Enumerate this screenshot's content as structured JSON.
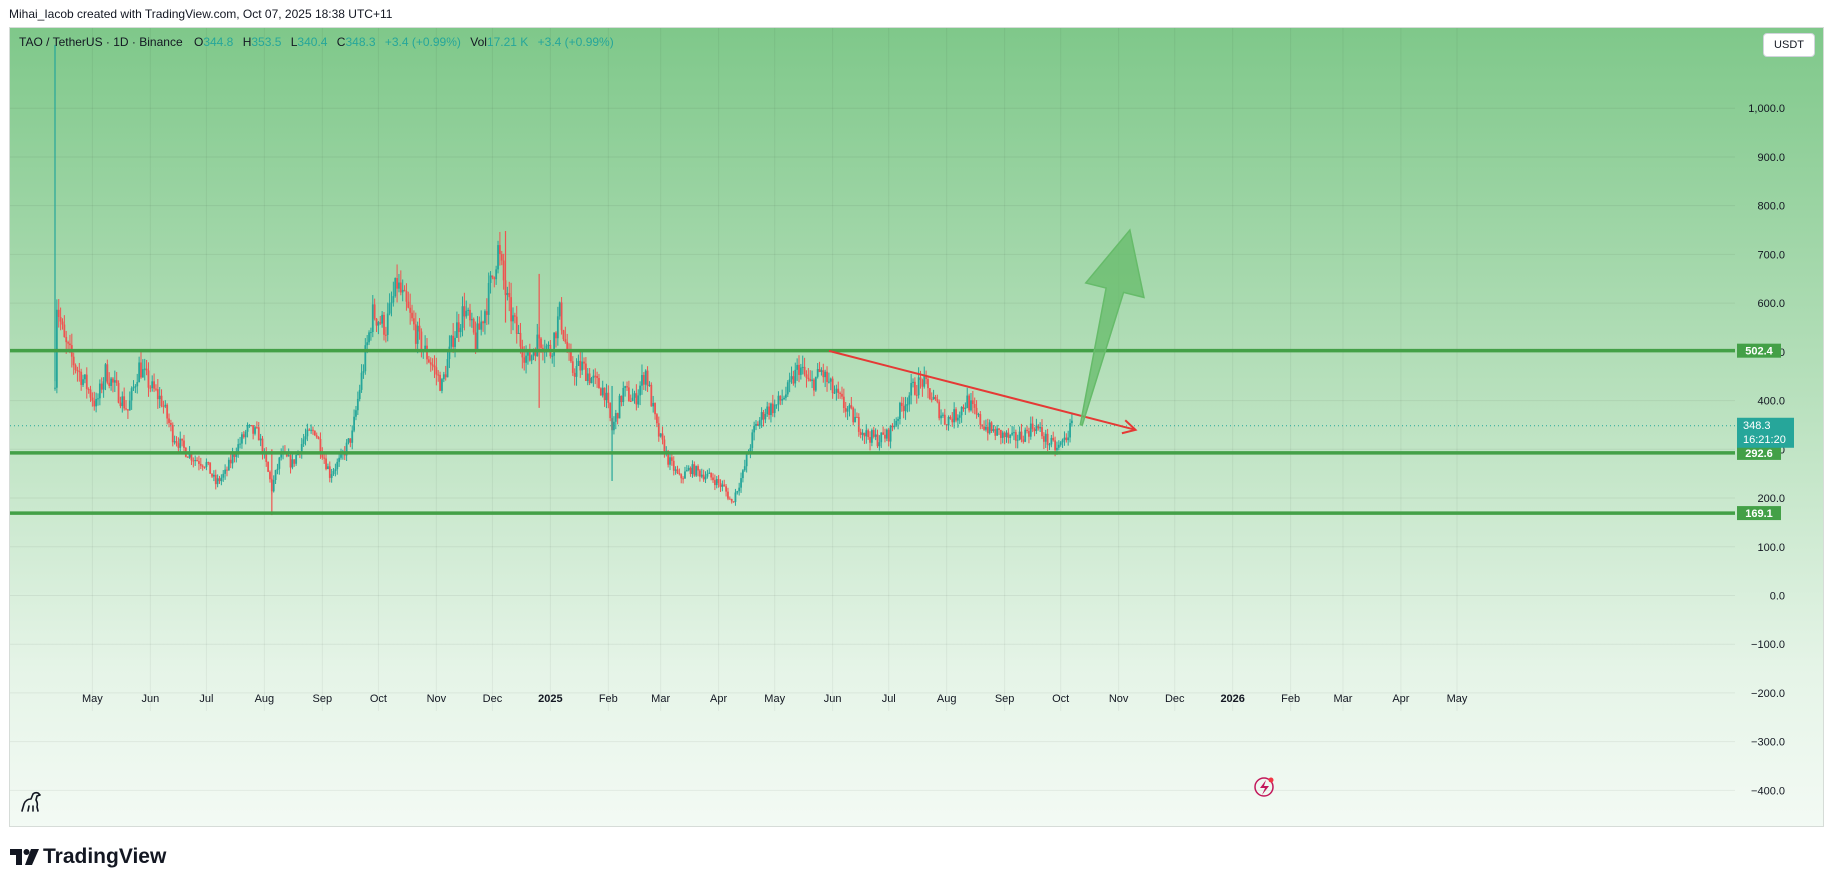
{
  "header": {
    "attribution": "Mihai_Iacob created with TradingView.com, Oct 07, 2025 18:38 UTC+11"
  },
  "legend": {
    "symbol": "TAO / TetherUS · 1D · Binance",
    "o_label": "O",
    "o_value": "344.8",
    "h_label": "H",
    "h_value": "353.5",
    "l_label": "L",
    "l_value": "340.4",
    "c_label": "C",
    "c_value": "348.3",
    "change": "+3.4 (+0.99%)",
    "vol_label": "Vol",
    "vol_value": "17.21 K",
    "vol_change": "+3.4 (+0.99%)"
  },
  "currency_button": "USDT",
  "footer": {
    "brand": "TradingView"
  },
  "icons": {
    "logo": "tradingview-logo-icon",
    "dino": "dino-icon",
    "events": "lightning-icon"
  },
  "colors": {
    "up": "#26a69a",
    "down": "#ef5350",
    "levels": "#43a047",
    "trendline": "#e53935",
    "projection": "#66bb6a",
    "last_price": "#26a69a"
  },
  "chart_data": {
    "type": "candlestick",
    "ylim": [
      -430,
      1140
    ],
    "y_ticks": [
      1000,
      900,
      800,
      700,
      600,
      500,
      400,
      300,
      200,
      100,
      0,
      -100,
      -200,
      -300,
      -400
    ],
    "y_tick_labels": [
      "1,000.0",
      "900.0",
      "800.0",
      "700.0",
      "600.0",
      "500.0",
      "400.0",
      "300.0",
      "200.0",
      "100.0",
      "0.0",
      "−100.0",
      "−200.0",
      "−300.0",
      "−400.0"
    ],
    "x_axis": {
      "start": "2024-04-11",
      "ticks": [
        {
          "date": "2024-05-01",
          "label": "May"
        },
        {
          "date": "2024-06-01",
          "label": "Jun"
        },
        {
          "date": "2024-07-01",
          "label": "Jul"
        },
        {
          "date": "2024-08-01",
          "label": "Aug"
        },
        {
          "date": "2024-09-01",
          "label": "Sep"
        },
        {
          "date": "2024-10-01",
          "label": "Oct"
        },
        {
          "date": "2024-11-01",
          "label": "Nov"
        },
        {
          "date": "2024-12-01",
          "label": "Dec"
        },
        {
          "date": "2025-01-01",
          "label": "2025",
          "bold": true
        },
        {
          "date": "2025-02-01",
          "label": "Feb"
        },
        {
          "date": "2025-03-01",
          "label": "Mar"
        },
        {
          "date": "2025-04-01",
          "label": "Apr"
        },
        {
          "date": "2025-05-01",
          "label": "May"
        },
        {
          "date": "2025-06-01",
          "label": "Jun"
        },
        {
          "date": "2025-07-01",
          "label": "Jul"
        },
        {
          "date": "2025-08-01",
          "label": "Aug"
        },
        {
          "date": "2025-09-01",
          "label": "Sep"
        },
        {
          "date": "2025-10-01",
          "label": "Oct"
        },
        {
          "date": "2025-11-01",
          "label": "Nov"
        },
        {
          "date": "2025-12-01",
          "label": "Dec"
        },
        {
          "date": "2026-01-01",
          "label": "2026",
          "bold": true
        },
        {
          "date": "2026-02-01",
          "label": "Feb"
        },
        {
          "date": "2026-03-01",
          "label": "Mar"
        },
        {
          "date": "2026-04-01",
          "label": "Apr"
        },
        {
          "date": "2026-05-01",
          "label": "May"
        }
      ]
    },
    "close_path": [
      {
        "date": "2024-04-11",
        "price": 450
      },
      {
        "date": "2024-04-12",
        "price": 600
      },
      {
        "date": "2024-04-16",
        "price": 520
      },
      {
        "date": "2024-04-22",
        "price": 470
      },
      {
        "date": "2024-04-28",
        "price": 430
      },
      {
        "date": "2024-05-03",
        "price": 390
      },
      {
        "date": "2024-05-08",
        "price": 460
      },
      {
        "date": "2024-05-14",
        "price": 420
      },
      {
        "date": "2024-05-20",
        "price": 380
      },
      {
        "date": "2024-05-26",
        "price": 470
      },
      {
        "date": "2024-06-01",
        "price": 430
      },
      {
        "date": "2024-06-07",
        "price": 400
      },
      {
        "date": "2024-06-13",
        "price": 330
      },
      {
        "date": "2024-06-19",
        "price": 300
      },
      {
        "date": "2024-06-25",
        "price": 280
      },
      {
        "date": "2024-07-01",
        "price": 270
      },
      {
        "date": "2024-07-06",
        "price": 230
      },
      {
        "date": "2024-07-11",
        "price": 250
      },
      {
        "date": "2024-07-17",
        "price": 300
      },
      {
        "date": "2024-07-23",
        "price": 340
      },
      {
        "date": "2024-07-29",
        "price": 330
      },
      {
        "date": "2024-08-05",
        "price": 220
      },
      {
        "date": "2024-08-10",
        "price": 290
      },
      {
        "date": "2024-08-16",
        "price": 270
      },
      {
        "date": "2024-08-22",
        "price": 320
      },
      {
        "date": "2024-08-28",
        "price": 340
      },
      {
        "date": "2024-09-05",
        "price": 250
      },
      {
        "date": "2024-09-11",
        "price": 280
      },
      {
        "date": "2024-09-17",
        "price": 330
      },
      {
        "date": "2024-09-22",
        "price": 450
      },
      {
        "date": "2024-09-28",
        "price": 580
      },
      {
        "date": "2024-10-05",
        "price": 550
      },
      {
        "date": "2024-10-11",
        "price": 640
      },
      {
        "date": "2024-10-17",
        "price": 580
      },
      {
        "date": "2024-10-23",
        "price": 520
      },
      {
        "date": "2024-10-29",
        "price": 480
      },
      {
        "date": "2024-11-04",
        "price": 430
      },
      {
        "date": "2024-11-10",
        "price": 530
      },
      {
        "date": "2024-11-16",
        "price": 590
      },
      {
        "date": "2024-11-22",
        "price": 520
      },
      {
        "date": "2024-11-28",
        "price": 600
      },
      {
        "date": "2024-12-04",
        "price": 710
      },
      {
        "date": "2024-12-09",
        "price": 600
      },
      {
        "date": "2024-12-14",
        "price": 540
      },
      {
        "date": "2024-12-20",
        "price": 480
      },
      {
        "date": "2024-12-26",
        "price": 530
      },
      {
        "date": "2025-01-01",
        "price": 500
      },
      {
        "date": "2025-01-06",
        "price": 580
      },
      {
        "date": "2025-01-12",
        "price": 460
      },
      {
        "date": "2025-01-18",
        "price": 470
      },
      {
        "date": "2025-01-24",
        "price": 440
      },
      {
        "date": "2025-01-30",
        "price": 420
      },
      {
        "date": "2025-02-03",
        "price": 340
      },
      {
        "date": "2025-02-09",
        "price": 420
      },
      {
        "date": "2025-02-15",
        "price": 400
      },
      {
        "date": "2025-02-21",
        "price": 460
      },
      {
        "date": "2025-02-27",
        "price": 340
      },
      {
        "date": "2025-03-05",
        "price": 280
      },
      {
        "date": "2025-03-11",
        "price": 240
      },
      {
        "date": "2025-03-17",
        "price": 260
      },
      {
        "date": "2025-03-23",
        "price": 250
      },
      {
        "date": "2025-03-29",
        "price": 240
      },
      {
        "date": "2025-04-04",
        "price": 220
      },
      {
        "date": "2025-04-08",
        "price": 190
      },
      {
        "date": "2025-04-14",
        "price": 250
      },
      {
        "date": "2025-04-20",
        "price": 340
      },
      {
        "date": "2025-04-26",
        "price": 380
      },
      {
        "date": "2025-05-02",
        "price": 390
      },
      {
        "date": "2025-05-08",
        "price": 420
      },
      {
        "date": "2025-05-14",
        "price": 470
      },
      {
        "date": "2025-05-20",
        "price": 430
      },
      {
        "date": "2025-05-26",
        "price": 460
      },
      {
        "date": "2025-06-01",
        "price": 420
      },
      {
        "date": "2025-06-07",
        "price": 390
      },
      {
        "date": "2025-06-13",
        "price": 360
      },
      {
        "date": "2025-06-19",
        "price": 330
      },
      {
        "date": "2025-06-25",
        "price": 320
      },
      {
        "date": "2025-07-01",
        "price": 330
      },
      {
        "date": "2025-07-07",
        "price": 380
      },
      {
        "date": "2025-07-13",
        "price": 420
      },
      {
        "date": "2025-07-19",
        "price": 440
      },
      {
        "date": "2025-07-25",
        "price": 400
      },
      {
        "date": "2025-07-31",
        "price": 360
      },
      {
        "date": "2025-08-06",
        "price": 370
      },
      {
        "date": "2025-08-12",
        "price": 400
      },
      {
        "date": "2025-08-18",
        "price": 360
      },
      {
        "date": "2025-08-24",
        "price": 340
      },
      {
        "date": "2025-08-30",
        "price": 330
      },
      {
        "date": "2025-09-05",
        "price": 320
      },
      {
        "date": "2025-09-11",
        "price": 330
      },
      {
        "date": "2025-09-17",
        "price": 350
      },
      {
        "date": "2025-09-23",
        "price": 320
      },
      {
        "date": "2025-09-29",
        "price": 300
      },
      {
        "date": "2025-10-03",
        "price": 320
      },
      {
        "date": "2025-10-07",
        "price": 348.3
      }
    ],
    "wick_spikes": [
      {
        "date": "2024-04-11",
        "high": 1130,
        "low": 440
      },
      {
        "date": "2024-12-08",
        "high": 748,
        "low": 560
      },
      {
        "date": "2024-12-26",
        "high": 660,
        "low": 385
      },
      {
        "date": "2025-02-03",
        "high": 430,
        "low": 235
      },
      {
        "date": "2024-08-05",
        "high": 300,
        "low": 165
      }
    ],
    "horizontal_levels": [
      {
        "price": 502.4,
        "label": "502.4"
      },
      {
        "price": 292.6,
        "label": "292.6"
      },
      {
        "price": 169.1,
        "label": "169.1"
      }
    ],
    "trendline": {
      "from": {
        "date": "2025-05-30",
        "price": 502
      },
      "to": {
        "date": "2025-11-10",
        "price": 340
      }
    },
    "projection_arrow": {
      "from": {
        "date": "2025-10-12",
        "price": 350
      },
      "to": {
        "date": "2025-11-07",
        "price": 750
      }
    },
    "last_price": {
      "price": 348.3,
      "label": "348.3",
      "countdown": "16:21:20"
    }
  }
}
